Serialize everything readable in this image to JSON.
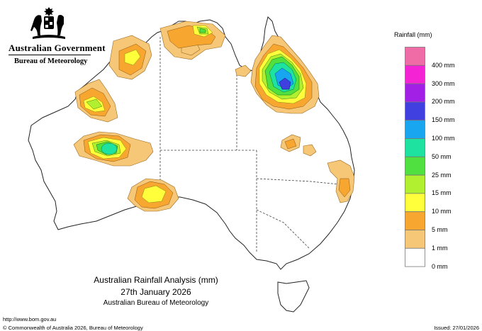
{
  "header": {
    "government": "Australian Government",
    "agency": "Bureau of Meteorology"
  },
  "map": {
    "title": "Australian Rainfall Analysis (mm)",
    "date": "27th January 2026",
    "credit": "Australian Bureau of Meteorology"
  },
  "legend": {
    "title": "Rainfall (mm)",
    "items": [
      {
        "label": "400 mm",
        "color": "#f06ca6"
      },
      {
        "label": "300 mm",
        "color": "#f424d4"
      },
      {
        "label": "200 mm",
        "color": "#a21fe6"
      },
      {
        "label": "150 mm",
        "color": "#4040e0"
      },
      {
        "label": "100 mm",
        "color": "#19a6f0"
      },
      {
        "label": "50 mm",
        "color": "#1ee2a0"
      },
      {
        "label": "25 mm",
        "color": "#50e040"
      },
      {
        "label": "15 mm",
        "color": "#b0f030"
      },
      {
        "label": "10 mm",
        "color": "#ffff3c"
      },
      {
        "label": "5 mm",
        "color": "#f7a630"
      },
      {
        "label": "1 mm",
        "color": "#f7c778"
      },
      {
        "label": "0 mm",
        "color": "#ffffff"
      }
    ]
  },
  "footer": {
    "url": "http://www.bom.gov.au",
    "copyright": "© Commonwealth of Australia 2026, Bureau of Meteorology",
    "issued": "Issued: 27/01/2026"
  }
}
